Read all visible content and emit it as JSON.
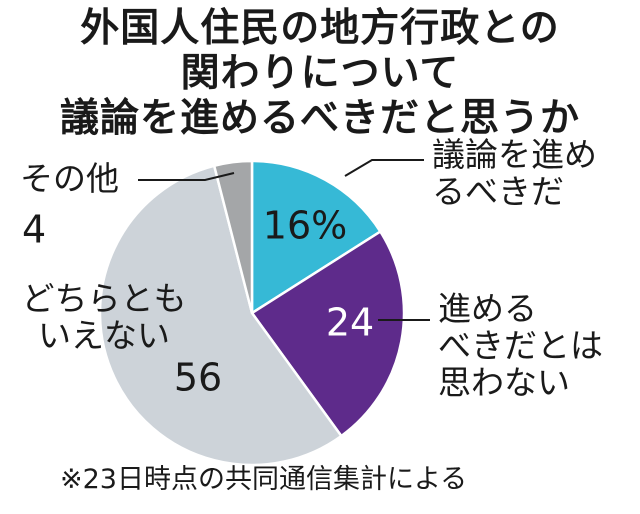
{
  "title_lines": [
    "外国人住民の地方行政との",
    "関わりについて",
    "議論を進めるべきだと思うか"
  ],
  "footnote": "※23日時点の共同通信集計による",
  "chart_data": {
    "type": "pie",
    "title": "外国人住民の地方行政との関わりについて議論を進めるべきだと思うか",
    "unit": "%",
    "slices": [
      {
        "label": "議論を進めるべきだ",
        "label_lines": [
          "議論を進め",
          "るべきだ"
        ],
        "value": 16,
        "value_text": "16%",
        "color": "#36b9d6",
        "value_text_color": "#1a1a1a"
      },
      {
        "label": "進めるべきだとは思わない",
        "label_lines": [
          "進める",
          "べきだとは",
          "思わない"
        ],
        "value": 24,
        "value_text": "24",
        "color": "#5e2b8b",
        "value_text_color": "#ffffff"
      },
      {
        "label": "どちらともいえない",
        "label_lines": [
          "どちらとも",
          "いえない"
        ],
        "value": 56,
        "value_text": "56",
        "color": "#cdd3d9",
        "value_text_color": "#1a1a1a"
      },
      {
        "label": "その他",
        "label_lines": [
          "その他"
        ],
        "value": 4,
        "value_text": "4",
        "color": "#a4a6a8",
        "value_text_color": "#1a1a1a"
      }
    ]
  }
}
